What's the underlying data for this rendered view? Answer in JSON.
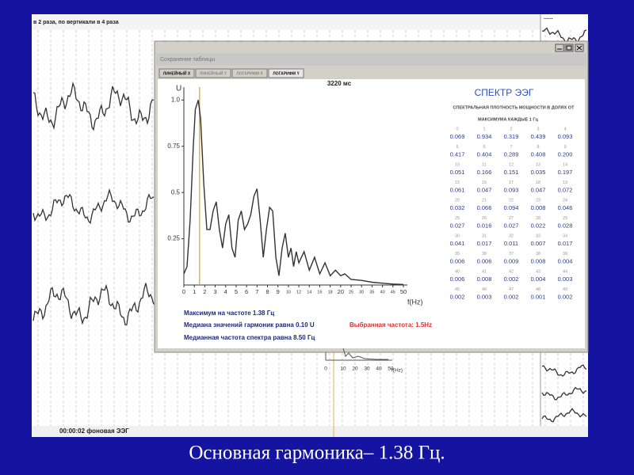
{
  "background_window": {
    "title": "в 2 раза, по вертикали в 4 раза",
    "corner_text": "......",
    "status": "00:00:02 фоновая ЭЭГ",
    "mini_axis_ticks": [
      0,
      10,
      20,
      30,
      40,
      50
    ],
    "mini_axis_label": "f(Hz)"
  },
  "dialog": {
    "title": "Сохранение таблицы",
    "tabs": [
      "ЛИНЕЙНЫЙ X",
      "ЛИНЕЙНЫЙ Y",
      "ЛОГАРИФМ X",
      "ЛОГАРИФМ Y"
    ],
    "time": "3220 мс",
    "info": {
      "peak": "Максимум на частоте 1.38 Гц",
      "median_harmonics": "Медиана значений гармоник равна 0.10 U",
      "selected": "Выбранная частота: 1.5Hz",
      "median_freq": "Медианная частота спектра равна 8.50 Гц"
    }
  },
  "table": {
    "title": "СПЕКТР ЭЭГ",
    "subtitle_1": "СПЕКТРАЛЬНАЯ ПЛОТНОСТЬ МОЩНОСТИ В ДОЛЯХ ОТ",
    "subtitle_2": "МАКСИМУМА КАЖДЫЕ 1 Гц",
    "indices": [
      0,
      1,
      2,
      3,
      4,
      5,
      6,
      7,
      8,
      9,
      10,
      11,
      12,
      13,
      14,
      15,
      16,
      17,
      18,
      19,
      20,
      21,
      22,
      23,
      24,
      25,
      26,
      27,
      28,
      29,
      30,
      31,
      32,
      33,
      34,
      35,
      36,
      37,
      38,
      39,
      40,
      41,
      42,
      43,
      44,
      45,
      46,
      47,
      48,
      49
    ],
    "values": [
      0.069,
      0.934,
      0.319,
      0.439,
      0.093,
      0.417,
      0.404,
      0.289,
      0.408,
      0.2,
      0.051,
      0.166,
      0.151,
      0.035,
      0.197,
      0.061,
      0.047,
      0.093,
      0.047,
      0.072,
      0.032,
      0.066,
      0.094,
      0.008,
      0.046,
      0.027,
      0.016,
      0.027,
      0.022,
      0.028,
      0.041,
      0.017,
      0.011,
      0.007,
      0.017,
      0.006,
      0.006,
      0.009,
      0.008,
      0.004,
      0.006,
      0.008,
      0.002,
      0.004,
      0.003,
      0.002,
      0.003,
      0.002,
      0.001,
      0.002
    ],
    "value_labels": [
      "0.069",
      "0.934",
      "0.319",
      "0.439",
      "0.093",
      "0.417",
      "0.404",
      "0.289",
      "0.408",
      "0.200",
      "0.051",
      "0.166",
      "0.151",
      "0.035",
      "0.197",
      "0.061",
      "0.047",
      "0.093",
      "0.047",
      "0.072",
      "0.032",
      "0.066",
      "0.094",
      "0.008",
      "0.046",
      "0.027",
      "0.016",
      "0.027",
      "0.022",
      "0.028",
      "0.041",
      "0.017",
      "0.011",
      "0.007",
      "0.017",
      "0.006",
      "0.006",
      "0.009",
      "0.008",
      "0.004",
      "0.006",
      "0.008",
      "0.002",
      "0.004",
      "0.003",
      "0.002",
      "0.003",
      "0.002",
      "0.001",
      "0.002"
    ]
  },
  "chart_data": {
    "type": "line",
    "ylabel": "U",
    "xlabel": "f(Hz)",
    "color": "#333333",
    "x": [
      0,
      0.3,
      0.6,
      0.9,
      1.1,
      1.38,
      1.6,
      1.9,
      2.2,
      2.5,
      2.8,
      3.1,
      3.4,
      3.7,
      4.0,
      4.3,
      4.6,
      4.9,
      5.2,
      5.5,
      5.8,
      6.1,
      6.4,
      6.7,
      7.0,
      7.3,
      7.6,
      7.9,
      8.2,
      8.5,
      8.8,
      9.1,
      9.4,
      9.7,
      10,
      10.5,
      11,
      11.5,
      12,
      13,
      14,
      15,
      16,
      17,
      18,
      19,
      20,
      22,
      25,
      30,
      35,
      40,
      45,
      50
    ],
    "values": [
      0.06,
      0.1,
      0.35,
      0.75,
      0.95,
      1.0,
      0.9,
      0.55,
      0.3,
      0.3,
      0.4,
      0.45,
      0.3,
      0.2,
      0.33,
      0.38,
      0.2,
      0.15,
      0.35,
      0.4,
      0.3,
      0.33,
      0.38,
      0.48,
      0.52,
      0.35,
      0.15,
      0.3,
      0.42,
      0.4,
      0.15,
      0.05,
      0.2,
      0.28,
      0.15,
      0.2,
      0.1,
      0.18,
      0.12,
      0.18,
      0.08,
      0.15,
      0.06,
      0.12,
      0.05,
      0.08,
      0.05,
      0.06,
      0.03,
      0.025,
      0.015,
      0.01,
      0.005,
      0.003
    ],
    "xlim": [
      0,
      50
    ],
    "ylim": [
      0,
      1.07
    ],
    "xticks": [
      0,
      1,
      2,
      3,
      4,
      5,
      6,
      7,
      8,
      9,
      10,
      12,
      14,
      16,
      18,
      20,
      25,
      30,
      35,
      40,
      45,
      50
    ],
    "yticks": [
      0.25,
      0.5,
      0.75,
      {
        "value": 1,
        "label": "1.0"
      }
    ],
    "selected_frequency": 1.5,
    "selected_color": "#e0a020"
  },
  "caption": "Основная гармоника– 1.38 Гц."
}
